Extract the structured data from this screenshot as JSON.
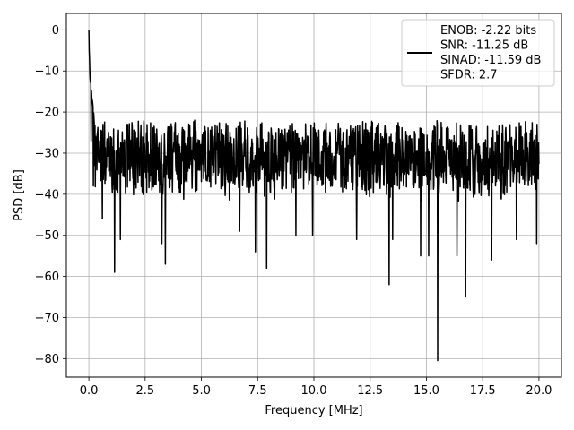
{
  "chart_data": {
    "type": "line",
    "title": "",
    "xlabel": "Frequency [MHz]",
    "ylabel": "PSD [dB]",
    "xlim": [
      -1.0,
      21.0
    ],
    "ylim": [
      -84.5,
      4.0
    ],
    "xticks": [
      0.0,
      2.5,
      5.0,
      7.5,
      10.0,
      12.5,
      15.0,
      17.5,
      20.0
    ],
    "xtick_labels": [
      "0.0",
      "2.5",
      "5.0",
      "7.5",
      "10.0",
      "12.5",
      "15.0",
      "17.5",
      "20.0"
    ],
    "yticks": [
      0,
      -10,
      -20,
      -30,
      -40,
      -50,
      -60,
      -70,
      -80
    ],
    "ytick_labels": [
      "0",
      "−10",
      "−20",
      "−30",
      "−40",
      "−50",
      "−60",
      "−70",
      "−80"
    ],
    "grid": true,
    "legend_position": "top-right",
    "legend_lines": [
      "ENOB: -2.22 bits",
      "SNR: -11.25 dB",
      "SINAD: -11.59 dB",
      "SFDR: 2.7"
    ],
    "series": [
      {
        "color": "#000000",
        "noise_floor_db_approx": [
          -38,
          -22
        ],
        "notable_points": [
          {
            "x": 0.0,
            "y": 0
          },
          {
            "x": 0.05,
            "y": -12
          },
          {
            "x": 0.1,
            "y": -27
          },
          {
            "x": 0.2,
            "y": -38
          },
          {
            "x": 0.6,
            "y": -46
          },
          {
            "x": 1.15,
            "y": -59
          },
          {
            "x": 1.4,
            "y": -51
          },
          {
            "x": 1.7,
            "y": -23
          },
          {
            "x": 3.25,
            "y": -52
          },
          {
            "x": 3.4,
            "y": -57
          },
          {
            "x": 4.7,
            "y": -22
          },
          {
            "x": 6.7,
            "y": -49
          },
          {
            "x": 7.4,
            "y": -54
          },
          {
            "x": 7.9,
            "y": -58
          },
          {
            "x": 9.2,
            "y": -50
          },
          {
            "x": 9.95,
            "y": -50
          },
          {
            "x": 11.9,
            "y": -51
          },
          {
            "x": 13.35,
            "y": -62
          },
          {
            "x": 13.5,
            "y": -51
          },
          {
            "x": 14.75,
            "y": -55
          },
          {
            "x": 15.1,
            "y": -55
          },
          {
            "x": 15.5,
            "y": -80.5
          },
          {
            "x": 16.35,
            "y": -55
          },
          {
            "x": 16.75,
            "y": -65
          },
          {
            "x": 17.9,
            "y": -56
          },
          {
            "x": 19.0,
            "y": -51
          },
          {
            "x": 19.9,
            "y": -52
          }
        ]
      }
    ]
  }
}
